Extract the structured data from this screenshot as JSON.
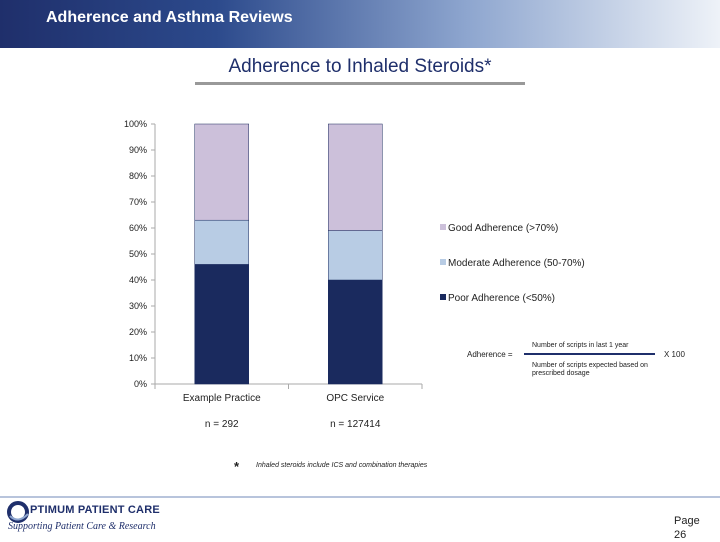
{
  "header": {
    "title": "Adherence and Asthma Reviews"
  },
  "slide_title": "Adherence to Inhaled Steroids*",
  "chart_data": {
    "type": "bar",
    "stacked": true,
    "categories": [
      "Example Practice",
      "OPC Service"
    ],
    "sample_sizes": [
      "n = 292",
      "n = 127414"
    ],
    "series": [
      {
        "name": "Poor Adherence (<50%)",
        "values": [
          46,
          40
        ],
        "color": "#1a2a5e"
      },
      {
        "name": "Moderate Adherence (50-70%)",
        "values": [
          17,
          19
        ],
        "color": "#b8cce4"
      },
      {
        "name": "Good Adherence (>70%)",
        "values": [
          37,
          41
        ],
        "color": "#ccc0da"
      }
    ],
    "yticks": [
      "0%",
      "10%",
      "20%",
      "30%",
      "40%",
      "50%",
      "60%",
      "70%",
      "80%",
      "90%",
      "100%"
    ],
    "ylim": [
      0,
      100
    ],
    "legend_position": "right"
  },
  "formula": {
    "lhs": "Adherence =",
    "numerator": "Number of scripts in last 1 year",
    "denominator": "Number of scripts expected based on prescribed dosage",
    "multiplier": "X 100"
  },
  "footnote": {
    "symbol": "*",
    "text": "Inhaled steroids include ICS and combination therapies"
  },
  "logo": {
    "main": "PTIMUM PATIENT CARE",
    "sub": "Supporting Patient Care & Research"
  },
  "page": {
    "label": "Page",
    "number": "26"
  }
}
